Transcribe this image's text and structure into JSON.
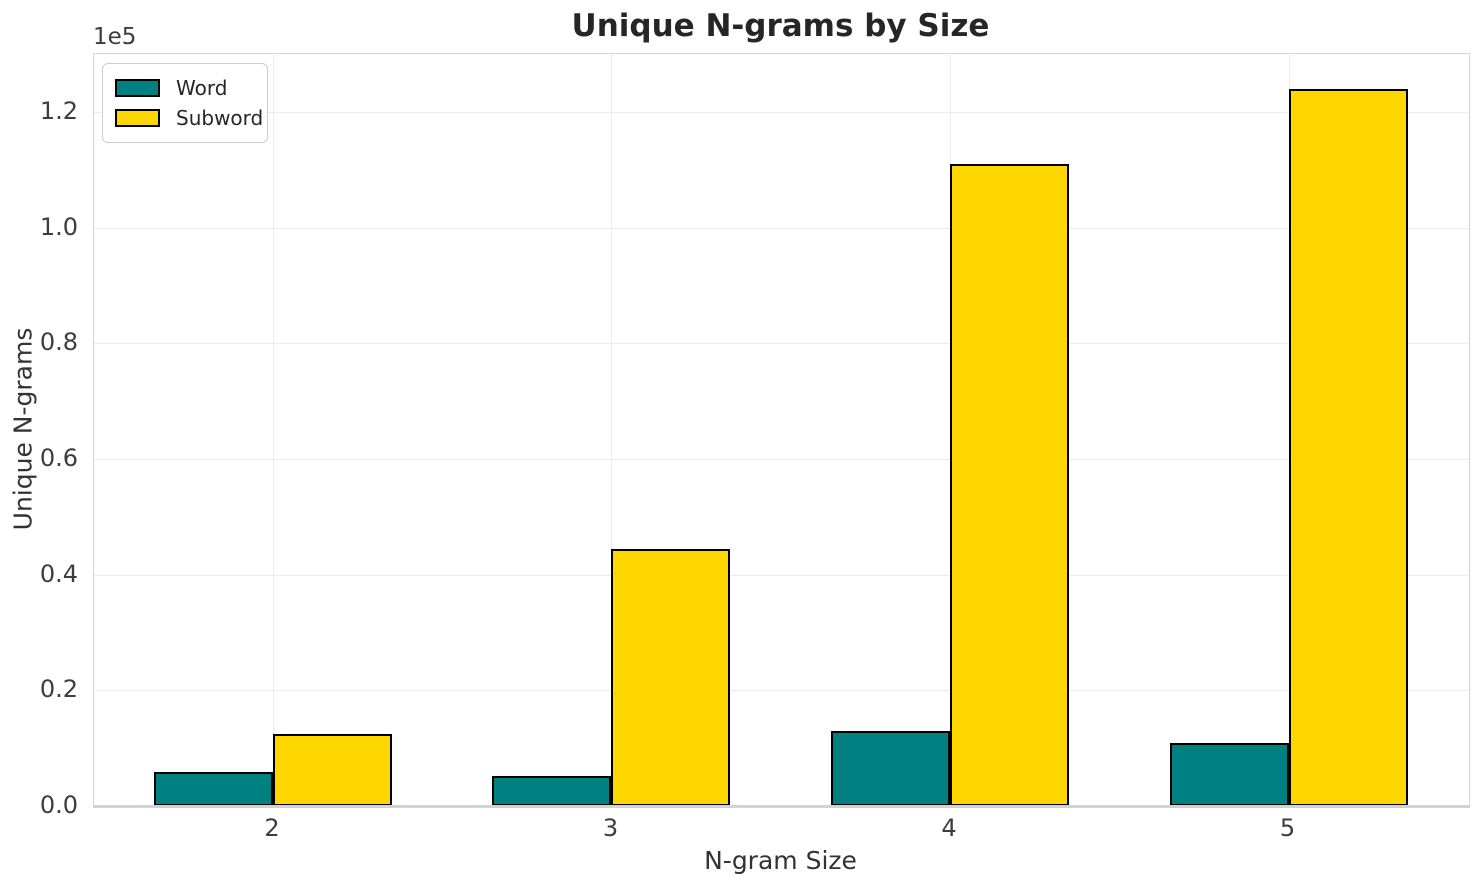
{
  "chart_data": {
    "type": "bar",
    "title": "Unique N-grams by Size",
    "xlabel": "N-gram Size",
    "ylabel": "Unique N-grams",
    "y_offset_label": "1e5",
    "categories": [
      "2",
      "3",
      "4",
      "5"
    ],
    "series": [
      {
        "name": "Word",
        "color": "#008080",
        "values": [
          5800,
          5100,
          12900,
          10900
        ]
      },
      {
        "name": "Subword",
        "color": "#FFD700",
        "values": [
          12400,
          44500,
          111000,
          124000
        ]
      }
    ],
    "bar_edge_color": "#000000",
    "ylim": [
      0,
      130000
    ],
    "yticks": [
      0,
      20000,
      40000,
      60000,
      80000,
      100000,
      120000
    ],
    "ytick_labels": [
      "0.0",
      "0.2",
      "0.4",
      "0.6",
      "0.8",
      "1.0",
      "1.2"
    ],
    "grid": true,
    "legend_position": "upper-left",
    "colors": {
      "background": "#ffffff",
      "gridline": "#ececec",
      "spine": "#d5d5d5",
      "text": "#262626"
    }
  }
}
